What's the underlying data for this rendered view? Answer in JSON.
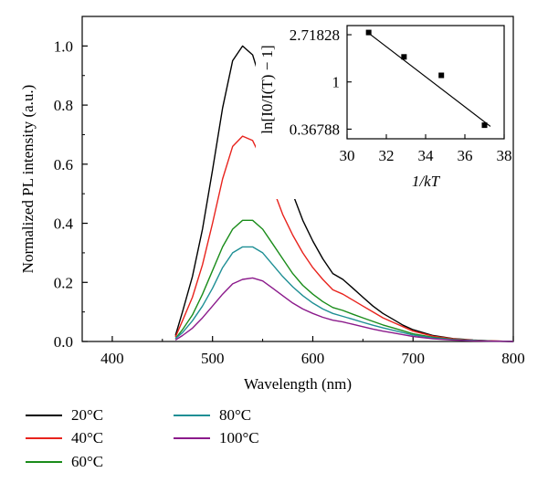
{
  "chart_data": [
    {
      "type": "line",
      "xlabel": "Wavelength (nm)",
      "ylabel": "Normalized PL intensity (a.u.)",
      "xlim": [
        370,
        800
      ],
      "ylim": [
        0,
        1.1
      ],
      "x_ticks": [
        "400",
        "500",
        "600",
        "700",
        "800"
      ],
      "y_ticks": [
        "0.0",
        "0.2",
        "0.4",
        "0.6",
        "0.8",
        "1.0"
      ],
      "legend_position": "bottom",
      "grid": false,
      "series": [
        {
          "name": "20°C",
          "color": "#000000",
          "x": [
            463,
            470,
            480,
            490,
            500,
            510,
            520,
            530,
            540,
            550,
            560,
            570,
            580,
            590,
            600,
            610,
            620,
            630,
            640,
            650,
            660,
            670,
            680,
            690,
            700,
            720,
            740,
            760,
            780,
            800
          ],
          "y": [
            0.02,
            0.1,
            0.22,
            0.38,
            0.58,
            0.79,
            0.95,
            1.0,
            0.97,
            0.86,
            0.72,
            0.6,
            0.5,
            0.41,
            0.34,
            0.28,
            0.23,
            0.21,
            0.18,
            0.15,
            0.12,
            0.095,
            0.075,
            0.055,
            0.04,
            0.02,
            0.01,
            0.005,
            0.002,
            0.0
          ]
        },
        {
          "name": "40°C",
          "color": "#e8231d",
          "x": [
            463,
            470,
            480,
            490,
            500,
            510,
            520,
            530,
            540,
            550,
            560,
            570,
            580,
            590,
            600,
            610,
            620,
            630,
            640,
            650,
            660,
            670,
            680,
            690,
            700,
            720,
            740,
            760,
            780,
            800
          ],
          "y": [
            0.015,
            0.07,
            0.15,
            0.26,
            0.4,
            0.55,
            0.66,
            0.695,
            0.68,
            0.61,
            0.52,
            0.43,
            0.36,
            0.3,
            0.25,
            0.21,
            0.175,
            0.16,
            0.14,
            0.12,
            0.1,
            0.08,
            0.065,
            0.05,
            0.035,
            0.018,
            0.009,
            0.004,
            0.002,
            0.0
          ]
        },
        {
          "name": "60°C",
          "color": "#1a8c1a",
          "x": [
            463,
            470,
            480,
            490,
            500,
            510,
            520,
            530,
            540,
            550,
            560,
            570,
            580,
            590,
            600,
            610,
            620,
            630,
            640,
            650,
            660,
            670,
            680,
            690,
            700,
            720,
            740,
            760,
            780,
            800
          ],
          "y": [
            0.01,
            0.04,
            0.09,
            0.16,
            0.24,
            0.32,
            0.38,
            0.41,
            0.41,
            0.38,
            0.33,
            0.28,
            0.23,
            0.19,
            0.16,
            0.135,
            0.115,
            0.105,
            0.092,
            0.08,
            0.068,
            0.056,
            0.046,
            0.036,
            0.026,
            0.014,
            0.007,
            0.003,
            0.001,
            0.0
          ]
        },
        {
          "name": "80°C",
          "color": "#1f8f95",
          "x": [
            463,
            470,
            480,
            490,
            500,
            510,
            520,
            530,
            540,
            550,
            560,
            570,
            580,
            590,
            600,
            610,
            620,
            630,
            640,
            650,
            660,
            670,
            680,
            690,
            700,
            720,
            740,
            760,
            780,
            800
          ],
          "y": [
            0.01,
            0.03,
            0.07,
            0.12,
            0.18,
            0.25,
            0.3,
            0.32,
            0.32,
            0.3,
            0.26,
            0.22,
            0.185,
            0.155,
            0.13,
            0.11,
            0.095,
            0.085,
            0.075,
            0.065,
            0.055,
            0.046,
            0.038,
            0.03,
            0.022,
            0.012,
            0.006,
            0.003,
            0.001,
            0.0
          ]
        },
        {
          "name": "100°C",
          "color": "#8b1a8b",
          "x": [
            463,
            470,
            480,
            490,
            500,
            510,
            520,
            530,
            540,
            550,
            560,
            570,
            580,
            590,
            600,
            610,
            620,
            630,
            640,
            650,
            660,
            670,
            680,
            690,
            700,
            720,
            740,
            760,
            780,
            800
          ],
          "y": [
            0.005,
            0.02,
            0.045,
            0.08,
            0.12,
            0.16,
            0.195,
            0.21,
            0.215,
            0.205,
            0.18,
            0.155,
            0.13,
            0.11,
            0.095,
            0.082,
            0.072,
            0.066,
            0.058,
            0.05,
            0.042,
            0.035,
            0.029,
            0.023,
            0.017,
            0.009,
            0.005,
            0.002,
            0.001,
            0.0
          ]
        }
      ]
    },
    {
      "type": "scatter",
      "inset": true,
      "xlabel": "1/kT",
      "ylabel": "ln[I0/I(T) − 1]",
      "xlim": [
        30,
        38
      ],
      "y_scale": "log",
      "ylim": [
        0.3,
        3.3
      ],
      "x_ticks": [
        "30",
        "32",
        "34",
        "36",
        "38"
      ],
      "y_ticks": [
        {
          "value": 0.36788,
          "label": "0.36788"
        },
        {
          "value": 1,
          "label": "1"
        },
        {
          "value": 2.71828,
          "label": "2.71828"
        }
      ],
      "points": {
        "x": [
          31.1,
          32.9,
          34.8,
          37.0
        ],
        "y": [
          2.85,
          1.7,
          1.15,
          0.4
        ]
      },
      "fit_line": {
        "x": [
          31.0,
          37.3
        ],
        "y": [
          2.9,
          0.39
        ]
      }
    }
  ]
}
